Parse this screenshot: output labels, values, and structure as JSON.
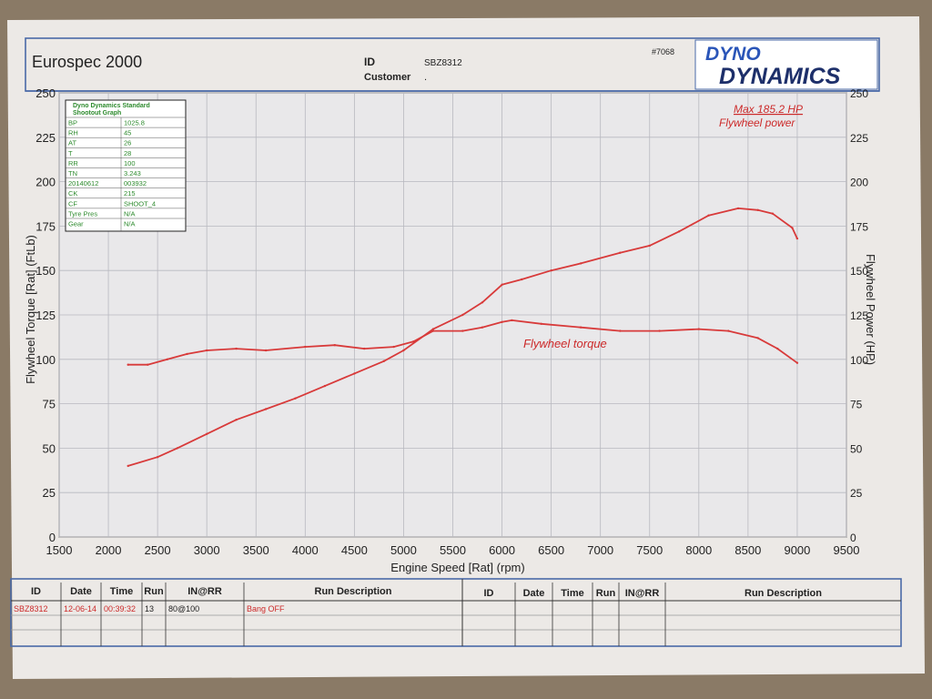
{
  "header": {
    "title": "Eurospec 2000",
    "id_label": "ID",
    "id_value": "SBZ8312",
    "customer_label": "Customer",
    "customer_value": ".",
    "sheet_number": "#7068",
    "logo_top": "DYNO",
    "logo_bottom": "DYNAMICS"
  },
  "params_table": {
    "title_line1": "Dyno Dynamics Standard",
    "title_line2": "Shootout Graph",
    "rows": [
      [
        "BP",
        "1025.8"
      ],
      [
        "RH",
        "45"
      ],
      [
        "AT",
        "26"
      ],
      [
        "T",
        "28"
      ],
      [
        "RR",
        "100"
      ],
      [
        "TN",
        "3.243"
      ],
      [
        "20140612",
        "003932"
      ],
      [
        "CK",
        "215"
      ],
      [
        "CF",
        "SHOOT_4"
      ],
      [
        "Tyre Pres",
        "N/A"
      ],
      [
        "Gear",
        "N/A"
      ]
    ]
  },
  "annotations": {
    "max_power": "Max 185.2 HP",
    "power_label": "Flywheel power",
    "torque_label": "Flywheel torque"
  },
  "chart_data": {
    "type": "line",
    "xlabel": "Engine Speed [Rat] (rpm)",
    "ylabel": "Flywheel Torque [Rat] (FtLb)",
    "y2label": "Flywheel Power (HP)",
    "xlim": [
      1500,
      9500
    ],
    "ylim": [
      0,
      250
    ],
    "y2lim": [
      0,
      250
    ],
    "x_ticks": [
      "1500",
      "2000",
      "2500",
      "3000",
      "3500",
      "4000",
      "4500",
      "5000",
      "5500",
      "6000",
      "6500",
      "7000",
      "7500",
      "8000",
      "8500",
      "9000",
      "9500"
    ],
    "y_ticks": [
      "0",
      "25",
      "50",
      "75",
      "100",
      "125",
      "150",
      "175",
      "200",
      "225",
      "250"
    ],
    "grid": true,
    "color": "#d83a3a",
    "series": [
      {
        "name": "Flywheel power",
        "x": [
          2200,
          2500,
          2700,
          3000,
          3300,
          3600,
          3900,
          4200,
          4500,
          4800,
          5000,
          5300,
          5600,
          5800,
          6000,
          6200,
          6500,
          6800,
          7200,
          7500,
          7800,
          8100,
          8400,
          8600,
          8750,
          8950,
          9000
        ],
        "values": [
          40,
          45,
          50,
          58,
          66,
          72,
          78,
          85,
          92,
          99,
          105,
          117,
          125,
          132,
          142,
          145,
          150,
          154,
          160,
          164,
          172,
          181,
          185,
          184,
          182,
          174,
          168
        ]
      },
      {
        "name": "Flywheel torque",
        "x": [
          2200,
          2400,
          2600,
          2800,
          3000,
          3300,
          3600,
          4000,
          4300,
          4600,
          4900,
          5100,
          5300,
          5600,
          5800,
          6000,
          6100,
          6400,
          6800,
          7200,
          7600,
          8000,
          8300,
          8600,
          8800,
          9000
        ],
        "values": [
          97,
          97,
          100,
          103,
          105,
          106,
          105,
          107,
          108,
          106,
          107,
          110,
          116,
          116,
          118,
          121,
          122,
          120,
          118,
          116,
          116,
          117,
          116,
          112,
          106,
          98
        ]
      }
    ]
  },
  "run_table": {
    "headers": [
      "ID",
      "Date",
      "Time",
      "Run",
      "IN@RR",
      "Run Description"
    ],
    "rows": [
      [
        "SBZ8312",
        "12-06-14",
        "00:39:32",
        "13",
        "80@100",
        "Bang OFF"
      ]
    ]
  }
}
